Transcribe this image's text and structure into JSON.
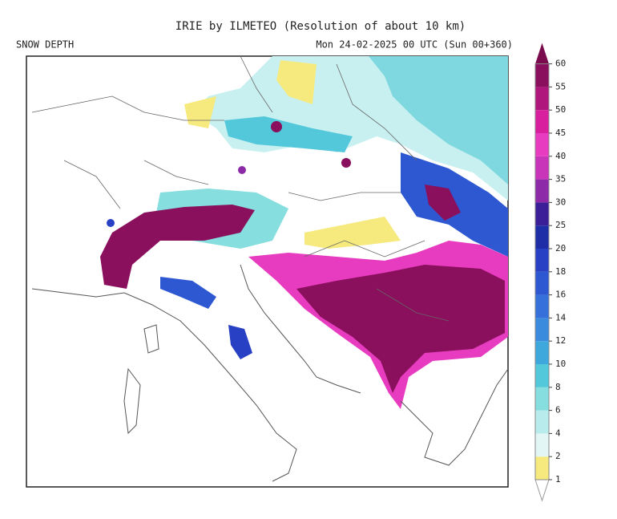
{
  "header": {
    "title": "IRIE by ILMETEO (Resolution of about 10 km)",
    "field": "SNOW DEPTH",
    "valid": "Mon 24-02-2025 00 UTC (Sun 00+360)"
  },
  "legend": {
    "ticks": [
      1,
      2,
      4,
      6,
      8,
      10,
      12,
      14,
      16,
      18,
      20,
      25,
      30,
      35,
      40,
      45,
      50,
      55,
      60
    ],
    "colors": [
      "#f6ea7e",
      "#e2f6f6",
      "#b8ecec",
      "#86dede",
      "#52c8da",
      "#3ea8dc",
      "#3a8ade",
      "#3670da",
      "#2e58d2",
      "#2740c4",
      "#1e2ea6",
      "#3b1f98",
      "#8c2aa8",
      "#c835b8",
      "#e83cc0",
      "#d8209e",
      "#b0177c",
      "#8a0f5c",
      "#7a0c4e"
    ]
  }
}
